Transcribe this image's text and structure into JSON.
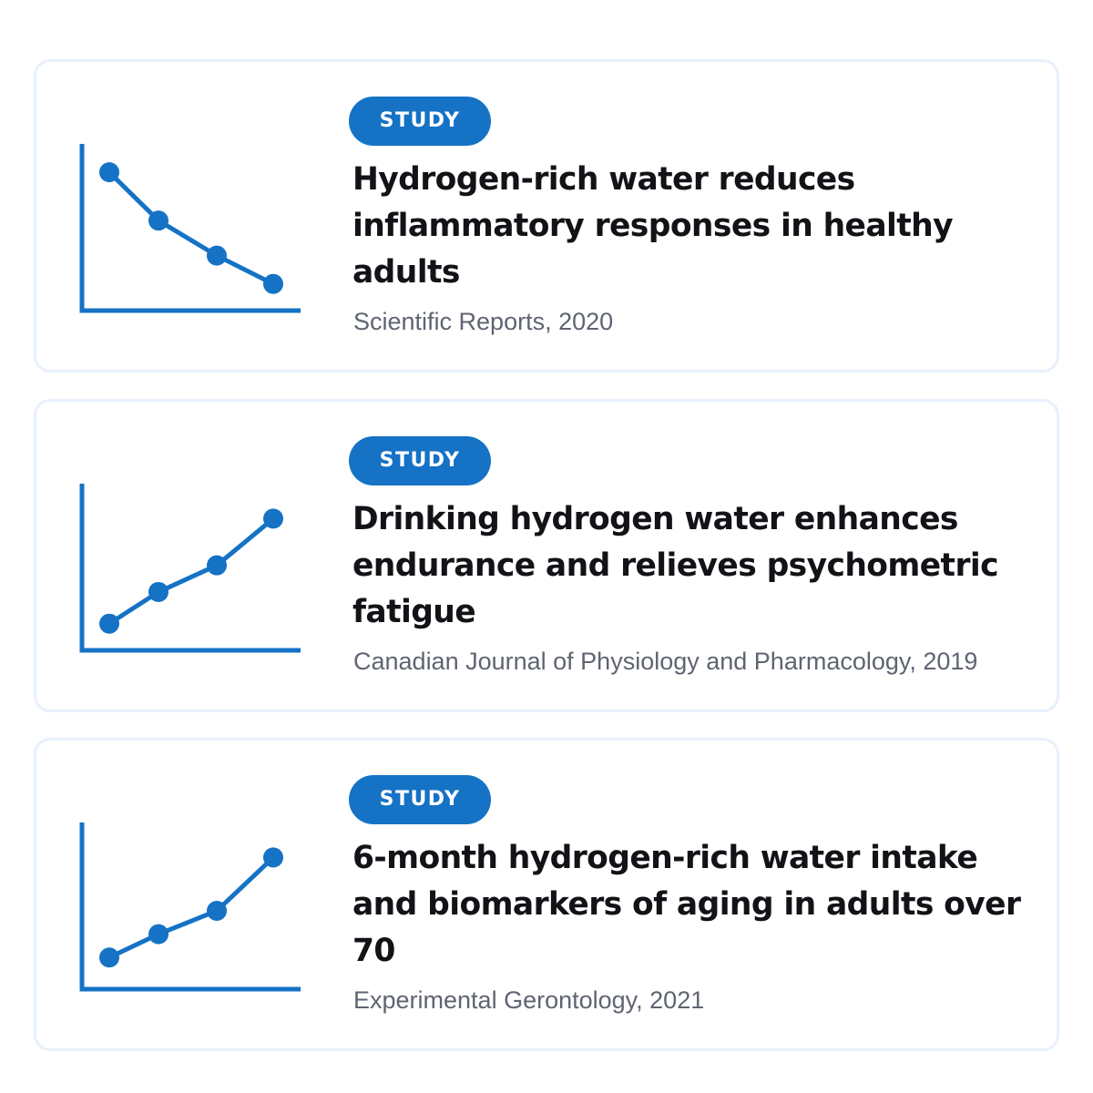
{
  "accent_color": "#1572c5",
  "studies": [
    {
      "badge": "STUDY",
      "title": "Hydrogen-rich water reduces inflammatory responses in healthy adults",
      "source": "Scientific Reports, 2020",
      "trend_icon": "decreasing-trend-chart-icon",
      "trend_points": [
        0.83,
        0.54,
        0.33,
        0.16
      ]
    },
    {
      "badge": "STUDY",
      "title": "Drinking hydrogen water enhances endurance and relieves psychometric fatigue",
      "source": "Canadian Journal of Physiology and Pharmacology, 2019",
      "trend_icon": "increasing-trend-chart-icon",
      "trend_points": [
        0.16,
        0.35,
        0.51,
        0.79
      ]
    },
    {
      "badge": "STUDY",
      "title": "6-month hydrogen-rich water intake and biomarkers of aging in adults over 70",
      "source": "Experimental Gerontology, 2021",
      "trend_icon": "increasing-trend-chart-icon",
      "trend_points": [
        0.19,
        0.33,
        0.47,
        0.79
      ]
    }
  ]
}
